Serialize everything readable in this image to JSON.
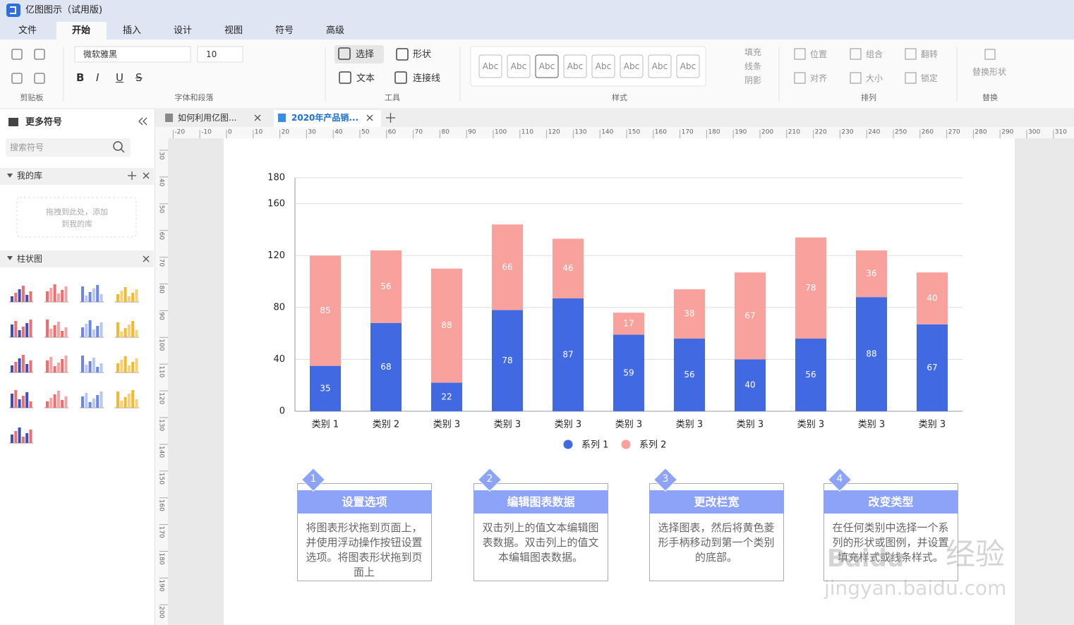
{
  "app_title": "亿图图示（试用版)",
  "menu": [
    "文件",
    "开始",
    "插入",
    "设计",
    "视图",
    "符号",
    "高级"
  ],
  "ribbon": {
    "font": "微软雅黑",
    "font_size": "10",
    "format": [
      "B",
      "I",
      "U",
      "S"
    ],
    "tools": [
      "选择",
      "形状",
      "文本",
      "连接线"
    ],
    "style_swatches": [
      "Abc",
      "Abc",
      "Abc",
      "Abc",
      "Abc",
      "Abc",
      "Abc",
      "Abc"
    ],
    "style_options": [
      "填充",
      "线条",
      "阴影"
    ],
    "arrange": [
      "位置",
      "组合",
      "翻转",
      "对齐",
      "大小",
      "锁定"
    ],
    "replace": "替换形状",
    "groups": [
      "剪贴板",
      "字体和段落",
      "工具",
      "样式",
      "排列",
      "替换"
    ]
  },
  "sidebar": {
    "title": "更多符号",
    "search": "搜索符号",
    "my_library": "我的库",
    "drop_hint": "拖拽到此处，添加到我的库",
    "section": "柱状图"
  },
  "doc_tabs": [
    "如何利用亿图...",
    "2020年产品销..."
  ],
  "ruler": {
    "top": [
      -20,
      -10,
      0,
      10,
      20,
      30,
      40,
      50,
      60,
      70,
      80,
      90,
      100,
      110,
      120,
      130,
      140,
      150,
      160,
      170,
      180,
      190,
      200,
      210,
      220,
      230,
      240,
      250,
      260,
      270,
      280,
      290,
      300,
      310
    ],
    "left": [
      30,
      40,
      50,
      60,
      70,
      80,
      90,
      100,
      110,
      120,
      130,
      140,
      150,
      160,
      170,
      180,
      190,
      200
    ]
  },
  "chart_data": {
    "type": "stacked_bar",
    "categories": [
      "类别 1",
      "类别 2",
      "类别 3",
      "类别 3",
      "类别 3",
      "类别 3",
      "类别 3",
      "类别 3",
      "类别 3",
      "类别 3",
      "类别 3"
    ],
    "series": [
      {
        "name": "系列 1",
        "color": "#4169e1",
        "values": [
          35,
          68,
          22,
          78,
          87,
          59,
          56,
          40,
          56,
          88,
          67
        ]
      },
      {
        "name": "系列 2",
        "color": "#f9a19c",
        "values": [
          85,
          56,
          88,
          66,
          46,
          17,
          38,
          67,
          78,
          36,
          40
        ]
      }
    ],
    "ylim": [
      0,
      180
    ],
    "yticks": [
      0,
      40,
      80,
      120,
      160,
      180
    ],
    "grid": true,
    "legend": "bottom"
  },
  "steps": [
    {
      "number": 1,
      "title": "设置选项",
      "text": "将图表形状拖到页面上，并使用浮动操作按钮设置选项。将图表形状拖到页面上"
    },
    {
      "number": 2,
      "title": "编辑图表数据",
      "text": "双击列上的值文本编辑图表数据。双击列上的值文本编辑图表数据。"
    },
    {
      "number": 3,
      "title": "更改栏宽",
      "text": "选择图表，然后将黄色菱形手柄移动到第一个类别的底部。"
    },
    {
      "number": 4,
      "title": "改变类型",
      "text": "在任何类别中选择一个系列的形状或图例，并设置填充样式或线条样式。"
    }
  ],
  "watermark": {
    "brand": "Baidu",
    "text": "经验",
    "url": "jingyan.baidu.com"
  }
}
